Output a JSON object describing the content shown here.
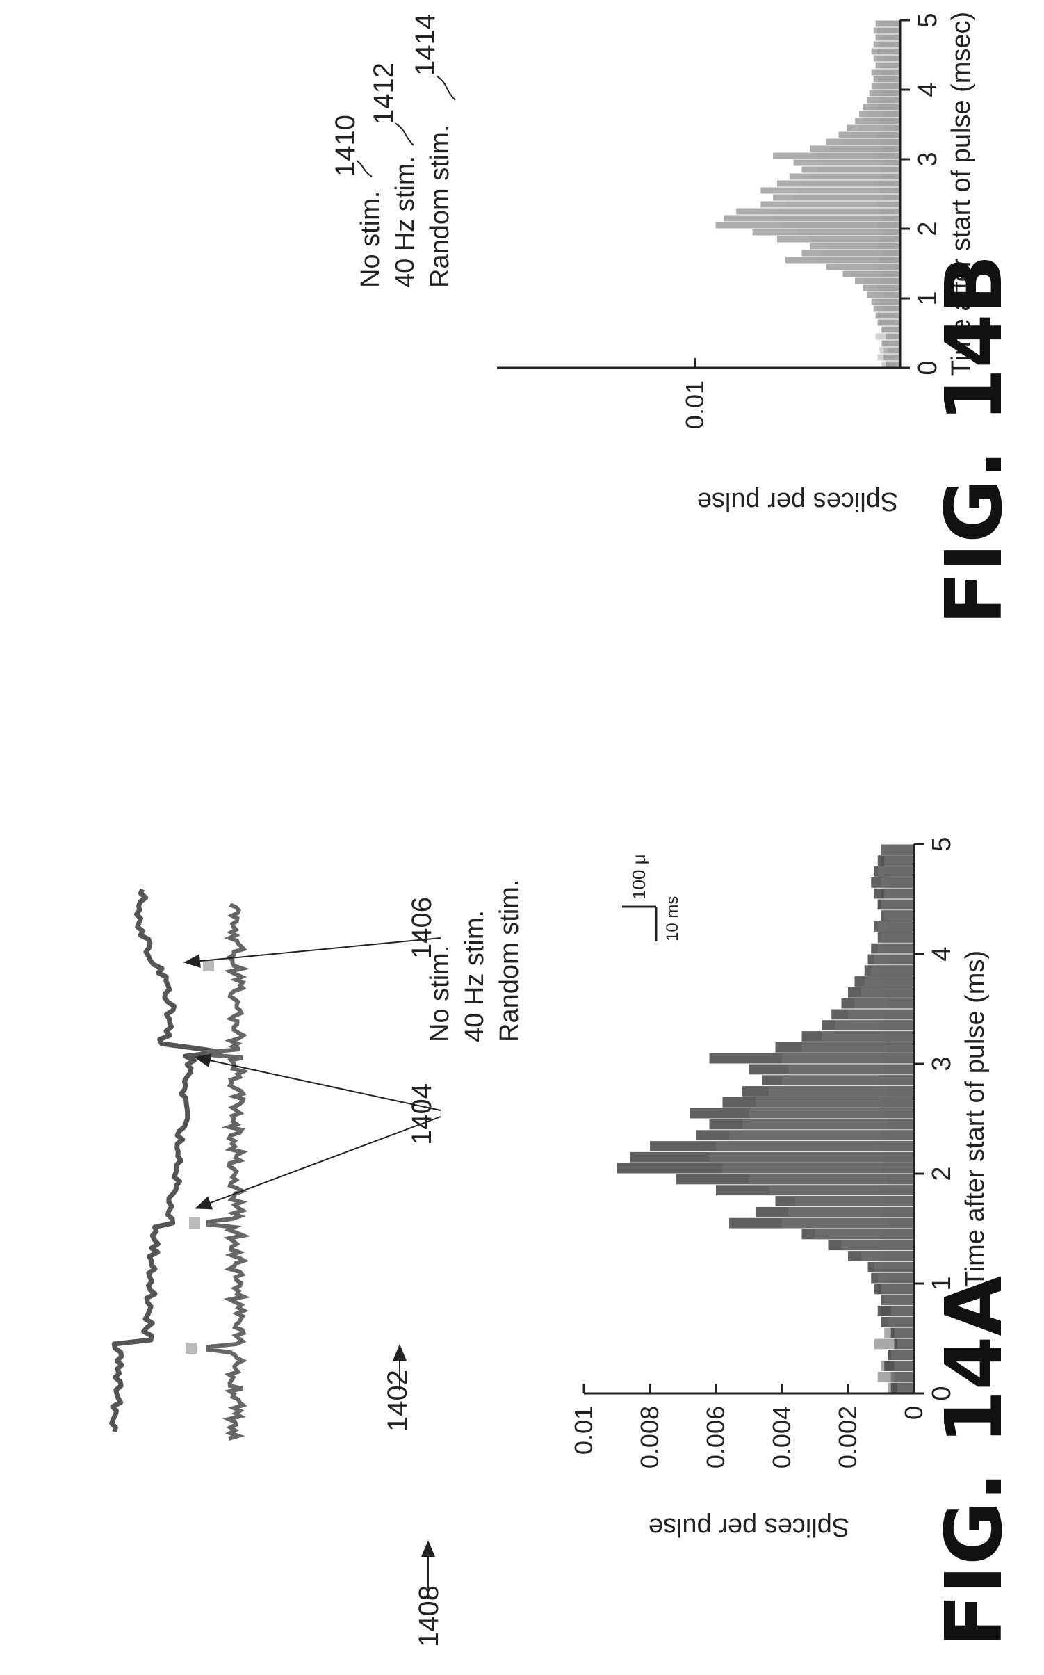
{
  "panel_a": {
    "ref_trace": "1402",
    "ref_peaks": "1404",
    "ref_noise": "1406",
    "ref_hist": "1408",
    "scale_amp": "100 μ",
    "scale_time": "10 ms",
    "figure_label": "FIG. 14A"
  },
  "panel_b": {
    "ref_no_stim": "1410",
    "ref_40hz": "1412",
    "ref_random": "1414",
    "figure_label": "FIG. 14B"
  },
  "chart_data": [
    {
      "type": "bar",
      "id": "fig14a",
      "title": "",
      "xlabel": "Time after start of pulse (ms)",
      "ylabel": "Splices per pulse",
      "xlim": [
        0,
        5
      ],
      "ylim": [
        0,
        0.01
      ],
      "xticks": [
        "0",
        "1",
        "2",
        "3",
        "4",
        "5"
      ],
      "yticks": [
        "0",
        "0.002",
        "0.004",
        "0.006",
        "0.008",
        "0.01"
      ],
      "legend": [
        "No stim.",
        "40 Hz stim.",
        "Random stim."
      ],
      "legend_position": "top-right",
      "bin_width": 0.1,
      "x": [
        0.0,
        0.1,
        0.2,
        0.3,
        0.4,
        0.5,
        0.6,
        0.7,
        0.8,
        0.9,
        1.0,
        1.1,
        1.2,
        1.3,
        1.4,
        1.5,
        1.6,
        1.7,
        1.8,
        1.9,
        2.0,
        2.1,
        2.2,
        2.3,
        2.4,
        2.5,
        2.6,
        2.7,
        2.8,
        2.9,
        3.0,
        3.1,
        3.2,
        3.3,
        3.4,
        3.5,
        3.6,
        3.7,
        3.8,
        3.9,
        4.0,
        4.1,
        4.2,
        4.3,
        4.4,
        4.5,
        4.6,
        4.7,
        4.8,
        4.9
      ],
      "series": [
        {
          "name": "No stim.",
          "color": "#9a9a9a",
          "values": [
            0.0008,
            0.0011,
            0.001,
            0.0008,
            0.0012,
            0.0009,
            0.0008,
            0.001,
            0.0009,
            0.0011,
            0.0008,
            0.001,
            0.0009,
            0.0011,
            0.001,
            0.0008,
            0.001,
            0.0009,
            0.0011,
            0.0008,
            0.001,
            0.0009,
            0.0011,
            0.001,
            0.0008,
            0.0009,
            0.001,
            0.0008,
            0.0011,
            0.0009,
            0.001,
            0.0008,
            0.0009,
            0.0011,
            0.001,
            0.0008,
            0.0009,
            0.001,
            0.0011,
            0.0008,
            0.0009,
            0.001,
            0.0008,
            0.0009,
            0.0011,
            0.001,
            0.0008,
            0.0009,
            0.001,
            0.0008
          ]
        },
        {
          "name": "40 Hz stim.",
          "color": "#444444",
          "values": [
            0.0007,
            0.0006,
            0.0009,
            0.0008,
            0.0006,
            0.0007,
            0.001,
            0.0011,
            0.001,
            0.0012,
            0.0013,
            0.0014,
            0.002,
            0.0026,
            0.0034,
            0.0056,
            0.0048,
            0.0042,
            0.006,
            0.0072,
            0.009,
            0.0086,
            0.008,
            0.0066,
            0.0062,
            0.0068,
            0.0058,
            0.0052,
            0.0046,
            0.005,
            0.0062,
            0.0042,
            0.0034,
            0.0028,
            0.0025,
            0.0022,
            0.002,
            0.0018,
            0.0015,
            0.0014,
            0.0013,
            0.0011,
            0.0012,
            0.001,
            0.0011,
            0.0012,
            0.0013,
            0.0012,
            0.0011,
            0.001
          ]
        },
        {
          "name": "Random stim.",
          "color": "#6e6e6e",
          "values": [
            0.0005,
            0.0007,
            0.0006,
            0.0007,
            0.0005,
            0.0006,
            0.0008,
            0.0007,
            0.0009,
            0.001,
            0.0011,
            0.0012,
            0.0016,
            0.0022,
            0.003,
            0.004,
            0.0038,
            0.0036,
            0.0044,
            0.005,
            0.0058,
            0.0062,
            0.006,
            0.0056,
            0.0052,
            0.005,
            0.0048,
            0.0044,
            0.004,
            0.0038,
            0.004,
            0.0034,
            0.0028,
            0.0024,
            0.002,
            0.0018,
            0.0016,
            0.0015,
            0.0013,
            0.0012,
            0.0011,
            0.001,
            0.0011,
            0.0009,
            0.001,
            0.0009,
            0.001,
            0.0011,
            0.0009,
            0.001
          ]
        }
      ]
    },
    {
      "type": "bar",
      "id": "fig14b",
      "title": "",
      "xlabel": "Time after start of pulse (msec)",
      "ylabel": "Splices per pulse",
      "xlim": [
        0,
        5
      ],
      "ylim": [
        0,
        0.01
      ],
      "xticks": [
        "0",
        "1",
        "2",
        "3",
        "4",
        "5"
      ],
      "yticks": [
        "0.01"
      ],
      "legend": [
        "No stim.",
        "40 Hz stim.",
        "Random stim."
      ],
      "legend_position": "top-right",
      "bin_width": 0.1,
      "x": [
        0.0,
        0.1,
        0.2,
        0.3,
        0.4,
        0.5,
        0.6,
        0.7,
        0.8,
        0.9,
        1.0,
        1.1,
        1.2,
        1.3,
        1.4,
        1.5,
        1.6,
        1.7,
        1.8,
        1.9,
        2.0,
        2.1,
        2.2,
        2.3,
        2.4,
        2.5,
        2.6,
        2.7,
        2.8,
        2.9,
        3.0,
        3.1,
        3.2,
        3.3,
        3.4,
        3.5,
        3.6,
        3.7,
        3.8,
        3.9,
        4.0,
        4.1,
        4.2,
        4.3,
        4.4,
        4.5,
        4.6,
        4.7,
        4.8,
        4.9
      ],
      "series": [
        {
          "name": "No stim.",
          "color": "#bdbdbd",
          "values": [
            0.0009,
            0.0011,
            0.001,
            0.0008,
            0.0012,
            0.0009,
            0.001,
            0.0011,
            0.0009,
            0.001,
            0.0008,
            0.0011,
            0.001,
            0.0009,
            0.0011,
            0.001,
            0.0009,
            0.0011,
            0.001,
            0.0008,
            0.0011,
            0.0009,
            0.001,
            0.0011,
            0.0009,
            0.001,
            0.0011,
            0.0009,
            0.001,
            0.0008,
            0.0011,
            0.0009,
            0.001,
            0.0011,
            0.0008,
            0.001,
            0.0009,
            0.0011,
            0.001,
            0.0009,
            0.001,
            0.0011,
            0.0009,
            0.001,
            0.0008,
            0.0011,
            0.001,
            0.0009,
            0.0011,
            0.001
          ]
        },
        {
          "name": "40 Hz stim.",
          "color": "#8a8a8a",
          "values": [
            0.0007,
            0.0008,
            0.0006,
            0.0009,
            0.0007,
            0.0009,
            0.0011,
            0.0012,
            0.0013,
            0.0014,
            0.0016,
            0.0018,
            0.0022,
            0.0028,
            0.0036,
            0.0056,
            0.0048,
            0.0044,
            0.006,
            0.0072,
            0.009,
            0.0086,
            0.008,
            0.0068,
            0.0062,
            0.0068,
            0.006,
            0.0054,
            0.0048,
            0.0052,
            0.0062,
            0.0044,
            0.0036,
            0.003,
            0.0026,
            0.0022,
            0.002,
            0.0018,
            0.0016,
            0.0015,
            0.0014,
            0.0013,
            0.0014,
            0.0012,
            0.0013,
            0.0014,
            0.0013,
            0.0012,
            0.0013,
            0.0012
          ]
        },
        {
          "name": "Random stim.",
          "color": "#a6a6a6",
          "values": [
            0.0006,
            0.0007,
            0.0008,
            0.0006,
            0.0007,
            0.0008,
            0.0009,
            0.001,
            0.0011,
            0.0012,
            0.0013,
            0.0015,
            0.0018,
            0.0024,
            0.003,
            0.004,
            0.0038,
            0.0036,
            0.0044,
            0.005,
            0.0058,
            0.0062,
            0.006,
            0.0056,
            0.0052,
            0.005,
            0.0048,
            0.0044,
            0.004,
            0.0038,
            0.004,
            0.0034,
            0.0028,
            0.0024,
            0.002,
            0.0018,
            0.0016,
            0.0015,
            0.0014,
            0.0013,
            0.0012,
            0.0011,
            0.0012,
            0.001,
            0.0011,
            0.001,
            0.0011,
            0.0012,
            0.001,
            0.0011
          ]
        }
      ]
    }
  ]
}
